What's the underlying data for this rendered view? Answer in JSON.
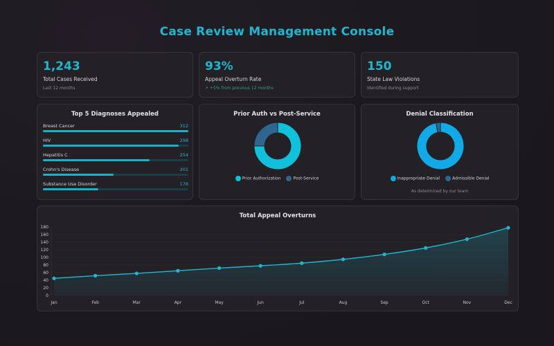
{
  "page": {
    "title": "Case Review Management Console"
  },
  "stats": [
    {
      "value": "1,243",
      "label": "Total Cases Received",
      "sub": "Last 12 months"
    },
    {
      "value": "93%",
      "label": "Appeal Overturn Rate",
      "sub": "↗ +5% from previous 12 months"
    },
    {
      "value": "150",
      "label": "State Law Violations",
      "sub": "Identified during support"
    }
  ],
  "colors": {
    "accent": "#1fb7d0",
    "bright": "#11b0e6",
    "dark": "#2f6690",
    "track": "#193f48"
  },
  "chart_data": [
    {
      "type": "bar",
      "orientation": "horizontal",
      "title": "Top 5 Diagnoses Appealed",
      "categories": [
        "Breast Cancer",
        "HIV",
        "Hepatitis C",
        "Crohn's Disease",
        "Substance Use Disorder"
      ],
      "values": [
        312,
        298,
        254,
        201,
        178
      ],
      "max": 312
    },
    {
      "type": "pie",
      "donut": true,
      "title": "Prior Auth vs Post-Service",
      "labels": [
        "Prior Authorization",
        "Post-Service"
      ],
      "values": [
        75,
        25
      ],
      "colors": [
        "#11c0da",
        "#2f6690"
      ]
    },
    {
      "type": "pie",
      "donut": true,
      "title": "Denial Classification",
      "labels": [
        "Inappropriate Denial",
        "Admissible Denial"
      ],
      "values": [
        97,
        3
      ],
      "colors": [
        "#11a9e6",
        "#2f6690"
      ],
      "note": "As determined by our team"
    },
    {
      "type": "area",
      "title": "Total Appeal Overturns",
      "categories": [
        "Jan",
        "Feb",
        "Mar",
        "Apr",
        "May",
        "Jun",
        "Jul",
        "Aug",
        "Sep",
        "Oct",
        "Nov",
        "Dec"
      ],
      "values": [
        45,
        52,
        58,
        65,
        72,
        78,
        85,
        95,
        108,
        125,
        148,
        178
      ],
      "ylim": [
        0,
        180
      ],
      "yticks": [
        0,
        20,
        40,
        60,
        80,
        100,
        120,
        140,
        160,
        180
      ]
    }
  ]
}
